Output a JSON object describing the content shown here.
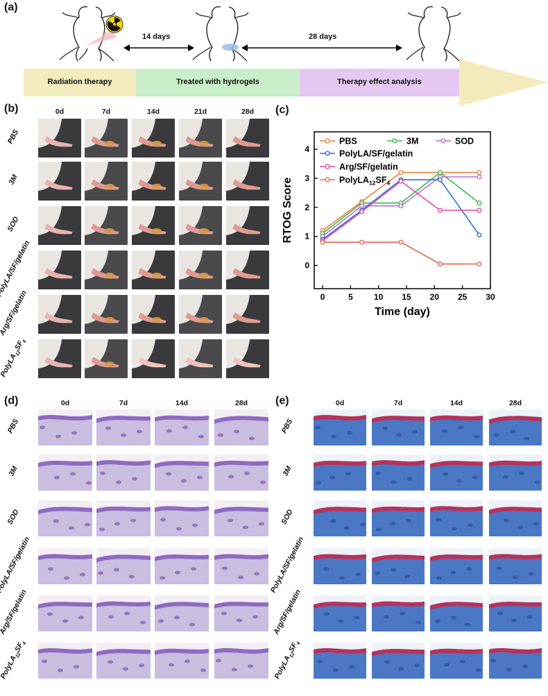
{
  "panels": {
    "a": "(a)",
    "b": "(b)",
    "c": "(c)",
    "d": "(d)",
    "e": "(e)"
  },
  "timeline": {
    "interval1": "14 days",
    "interval2": "28 days",
    "stages": [
      "Radiation therapy",
      "Treated with hydrogels",
      "Therapy effect analysis"
    ],
    "colors": {
      "radiation": "#f3ecbe",
      "treated": "#c9ecc9",
      "analysis": "#e4c8f2",
      "arrow": "#f4ebbd"
    }
  },
  "photo_days": [
    "0d",
    "7d",
    "14d",
    "21d",
    "28d"
  ],
  "histo_days": [
    "0d",
    "7d",
    "14d",
    "28d"
  ],
  "groups": [
    "PBS",
    "3M",
    "SOD",
    "PolyLA/SF/gelatin",
    "Arg/SF/gelatin",
    "PolyLA12SF4"
  ],
  "group_label_parts": {
    "last_base": "PolyLA",
    "last_sub1": "12",
    "last_mid": "SF",
    "last_sub2": "4"
  },
  "chart_data": {
    "type": "line",
    "title": "",
    "xlabel": "Time (day)",
    "ylabel": "RTOG Score",
    "xlim": [
      -1.5,
      30
    ],
    "ylim": [
      -0.8,
      4.6
    ],
    "xticks": [
      0,
      5,
      10,
      15,
      20,
      25,
      30
    ],
    "yticks": [
      0,
      1,
      2,
      3,
      4
    ],
    "x": [
      0,
      7,
      14,
      21,
      28
    ],
    "series": [
      {
        "name": "PBS",
        "color": "#f07f3a",
        "values": [
          1.2,
          2.2,
          3.2,
          3.2,
          3.2
        ]
      },
      {
        "name": "3M",
        "color": "#3cb84a",
        "values": [
          1.1,
          2.15,
          2.15,
          3.2,
          2.15
        ]
      },
      {
        "name": "SOD",
        "color": "#b46ed8",
        "values": [
          1.0,
          2.05,
          2.05,
          3.05,
          3.05
        ]
      },
      {
        "name": "PolyLA/SF/gelatin",
        "color": "#2e6fd0",
        "values": [
          0.9,
          1.9,
          2.95,
          2.95,
          1.05
        ]
      },
      {
        "name": "Arg/SF/gelatin",
        "color": "#e8479e",
        "values": [
          0.85,
          1.85,
          2.9,
          1.9,
          1.9
        ]
      },
      {
        "name": "PolyLA12SF4",
        "color": "#e8664f",
        "values": [
          0.8,
          0.8,
          0.8,
          0.05,
          0.05
        ]
      }
    ]
  }
}
